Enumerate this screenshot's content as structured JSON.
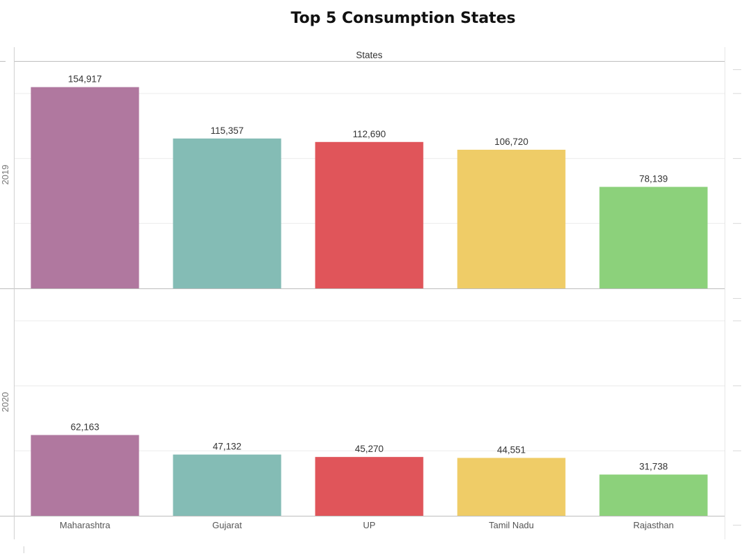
{
  "chart_data": {
    "type": "bar",
    "title": "Top 5 Consumption States",
    "column_header": "States",
    "categories": [
      "Maharashtra",
      "Gujarat",
      "UP",
      "Tamil Nadu",
      "Rajasthan"
    ],
    "colors": [
      "#b0789f",
      "#84bcb5",
      "#e0555a",
      "#efcc67",
      "#8cd17b"
    ],
    "panels": [
      {
        "label": "2019",
        "values": [
          154917,
          115357,
          112690,
          106720,
          78139
        ],
        "value_labels": [
          "154,917",
          "115,357",
          "112,690",
          "106,720",
          "78,139"
        ],
        "ylim": [
          0,
          175000
        ]
      },
      {
        "label": "2020",
        "values": [
          62163,
          47132,
          45270,
          44551,
          31738
        ],
        "value_labels": [
          "62,163",
          "47,132",
          "45,270",
          "44,551",
          "31,738"
        ],
        "ylim": [
          0,
          175000
        ]
      }
    ],
    "grid": true,
    "legend": "none"
  }
}
